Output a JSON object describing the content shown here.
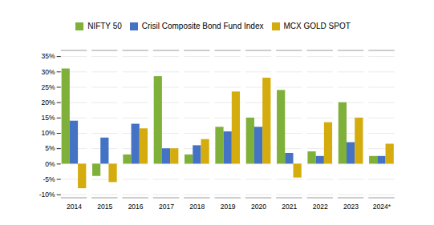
{
  "chart_data": {
    "type": "bar",
    "categories": [
      "2014",
      "2015",
      "2016",
      "2017",
      "2018",
      "2019",
      "2020",
      "2021",
      "2022",
      "2023",
      "2024*"
    ],
    "series": [
      {
        "name": "NIFTY 50",
        "color": "#7FB03A",
        "values": [
          31.0,
          -4.0,
          3.0,
          28.5,
          3.0,
          12.0,
          15.0,
          24.0,
          4.0,
          20.0,
          2.5
        ]
      },
      {
        "name": "Crisil Composite Bond Fund Index",
        "color": "#4472C4",
        "values": [
          14.0,
          8.5,
          13.0,
          5.0,
          6.0,
          10.5,
          12.0,
          3.5,
          2.5,
          7.0,
          2.5
        ]
      },
      {
        "name": "MCX GOLD SPOT",
        "color": "#D4AC0D",
        "values": [
          -8.0,
          -6.0,
          11.5,
          5.0,
          8.0,
          23.5,
          28.0,
          -4.5,
          13.5,
          15.0,
          6.5
        ]
      }
    ],
    "ylim": [
      -11,
      37
    ],
    "yticks": [
      {
        "value": -10,
        "label": "-10%"
      },
      {
        "value": -5,
        "label": "-5%"
      },
      {
        "value": 0,
        "label": "0%"
      },
      {
        "value": 5,
        "label": "5%"
      },
      {
        "value": 10,
        "label": "10%"
      },
      {
        "value": 15,
        "label": "15%"
      },
      {
        "value": 20,
        "label": "20%"
      },
      {
        "value": 25,
        "label": "25%"
      },
      {
        "value": 30,
        "label": "30%"
      },
      {
        "value": 35,
        "label": "35%"
      }
    ],
    "grid": true,
    "legend": "top"
  }
}
